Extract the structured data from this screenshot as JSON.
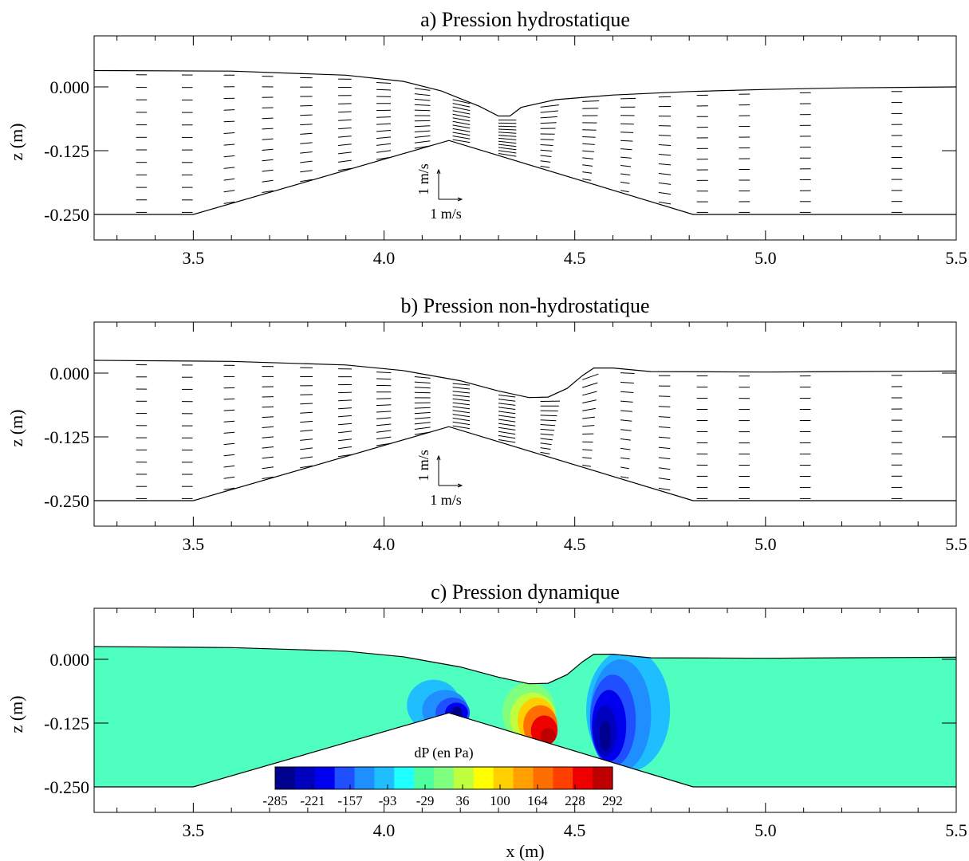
{
  "chart_data": [
    {
      "type": "quiver",
      "title": "a) Pression hydrostatique",
      "xlabel": "",
      "ylabel": "z (m)",
      "xlim": [
        3.24,
        5.5
      ],
      "ylim": [
        -0.3,
        0.1
      ],
      "xticks": [
        "3.5",
        "4.0",
        "4.5",
        "5.0",
        "5.5"
      ],
      "yticks": [
        "0.000",
        "-0.125",
        "-0.250"
      ],
      "reference_vectors": {
        "vertical": "1 m/s",
        "horizontal": "1 m/s"
      },
      "bed": [
        [
          3.24,
          -0.25
        ],
        [
          3.5,
          -0.25
        ],
        [
          4.17,
          -0.105
        ],
        [
          4.81,
          -0.25
        ],
        [
          5.5,
          -0.25
        ]
      ],
      "free_surface": [
        [
          3.24,
          0.032
        ],
        [
          3.6,
          0.031
        ],
        [
          3.9,
          0.023
        ],
        [
          4.05,
          0.011
        ],
        [
          4.15,
          -0.008
        ],
        [
          4.25,
          -0.038
        ],
        [
          4.3,
          -0.057
        ],
        [
          4.33,
          -0.057
        ],
        [
          4.36,
          -0.04
        ],
        [
          4.45,
          -0.025
        ],
        [
          4.6,
          -0.016
        ],
        [
          4.8,
          -0.009
        ],
        [
          5.0,
          -0.005
        ],
        [
          5.2,
          -0.002
        ],
        [
          5.5,
          0.0
        ]
      ]
    },
    {
      "type": "quiver",
      "title": "b) Pression non-hydrostatique",
      "xlabel": "",
      "ylabel": "z (m)",
      "xlim": [
        3.24,
        5.5
      ],
      "ylim": [
        -0.3,
        0.1
      ],
      "xticks": [
        "3.5",
        "4.0",
        "4.5",
        "5.0",
        "5.5"
      ],
      "yticks": [
        "0.000",
        "-0.125",
        "-0.250"
      ],
      "reference_vectors": {
        "vertical": "1 m/s",
        "horizontal": "1 m/s"
      },
      "bed": [
        [
          3.24,
          -0.25
        ],
        [
          3.5,
          -0.25
        ],
        [
          4.17,
          -0.105
        ],
        [
          4.81,
          -0.25
        ],
        [
          5.5,
          -0.25
        ]
      ],
      "free_surface": [
        [
          3.24,
          0.025
        ],
        [
          3.6,
          0.023
        ],
        [
          3.9,
          0.016
        ],
        [
          4.05,
          0.005
        ],
        [
          4.2,
          -0.015
        ],
        [
          4.3,
          -0.035
        ],
        [
          4.38,
          -0.048
        ],
        [
          4.43,
          -0.047
        ],
        [
          4.48,
          -0.03
        ],
        [
          4.52,
          -0.005
        ],
        [
          4.55,
          0.01
        ],
        [
          4.6,
          0.01
        ],
        [
          4.7,
          0.003
        ],
        [
          5.0,
          0.002
        ],
        [
          5.2,
          0.003
        ],
        [
          5.5,
          0.004
        ]
      ]
    },
    {
      "type": "contour",
      "title": "c) Pression dynamique",
      "xlabel": "x (m)",
      "ylabel": "z (m)",
      "xlim": [
        3.24,
        5.5
      ],
      "ylim": [
        -0.3,
        0.1
      ],
      "xticks": [
        "3.5",
        "4.0",
        "4.5",
        "5.0",
        "5.5"
      ],
      "yticks": [
        "0.000",
        "-0.125",
        "-0.250"
      ],
      "colorbar": {
        "title": "dP (en Pa)",
        "ticks": [
          "-285",
          "-221",
          "-157",
          "-93",
          "-29",
          "36",
          "100",
          "164",
          "228",
          "292"
        ],
        "colors": [
          "#00008f",
          "#0000bf",
          "#0000ef",
          "#1f4fff",
          "#1f8fff",
          "#1fbfff",
          "#1fffff",
          "#4fff9f",
          "#7fff7f",
          "#bfff3f",
          "#ffff00",
          "#ffcf00",
          "#ff9f00",
          "#ff6f00",
          "#ff3f00",
          "#ef0000",
          "#bf0000"
        ],
        "background_color": "#4fffbf"
      },
      "bed": [
        [
          3.24,
          -0.25
        ],
        [
          3.5,
          -0.25
        ],
        [
          4.17,
          -0.105
        ],
        [
          4.81,
          -0.25
        ],
        [
          5.5,
          -0.25
        ]
      ],
      "free_surface": [
        [
          3.24,
          0.025
        ],
        [
          3.6,
          0.023
        ],
        [
          3.9,
          0.016
        ],
        [
          4.05,
          0.005
        ],
        [
          4.2,
          -0.015
        ],
        [
          4.3,
          -0.035
        ],
        [
          4.38,
          -0.048
        ],
        [
          4.43,
          -0.047
        ],
        [
          4.48,
          -0.03
        ],
        [
          4.52,
          -0.005
        ],
        [
          4.55,
          0.01
        ],
        [
          4.6,
          0.01
        ],
        [
          4.7,
          0.003
        ],
        [
          5.0,
          0.002
        ],
        [
          5.2,
          0.003
        ],
        [
          5.5,
          0.004
        ]
      ]
    }
  ]
}
